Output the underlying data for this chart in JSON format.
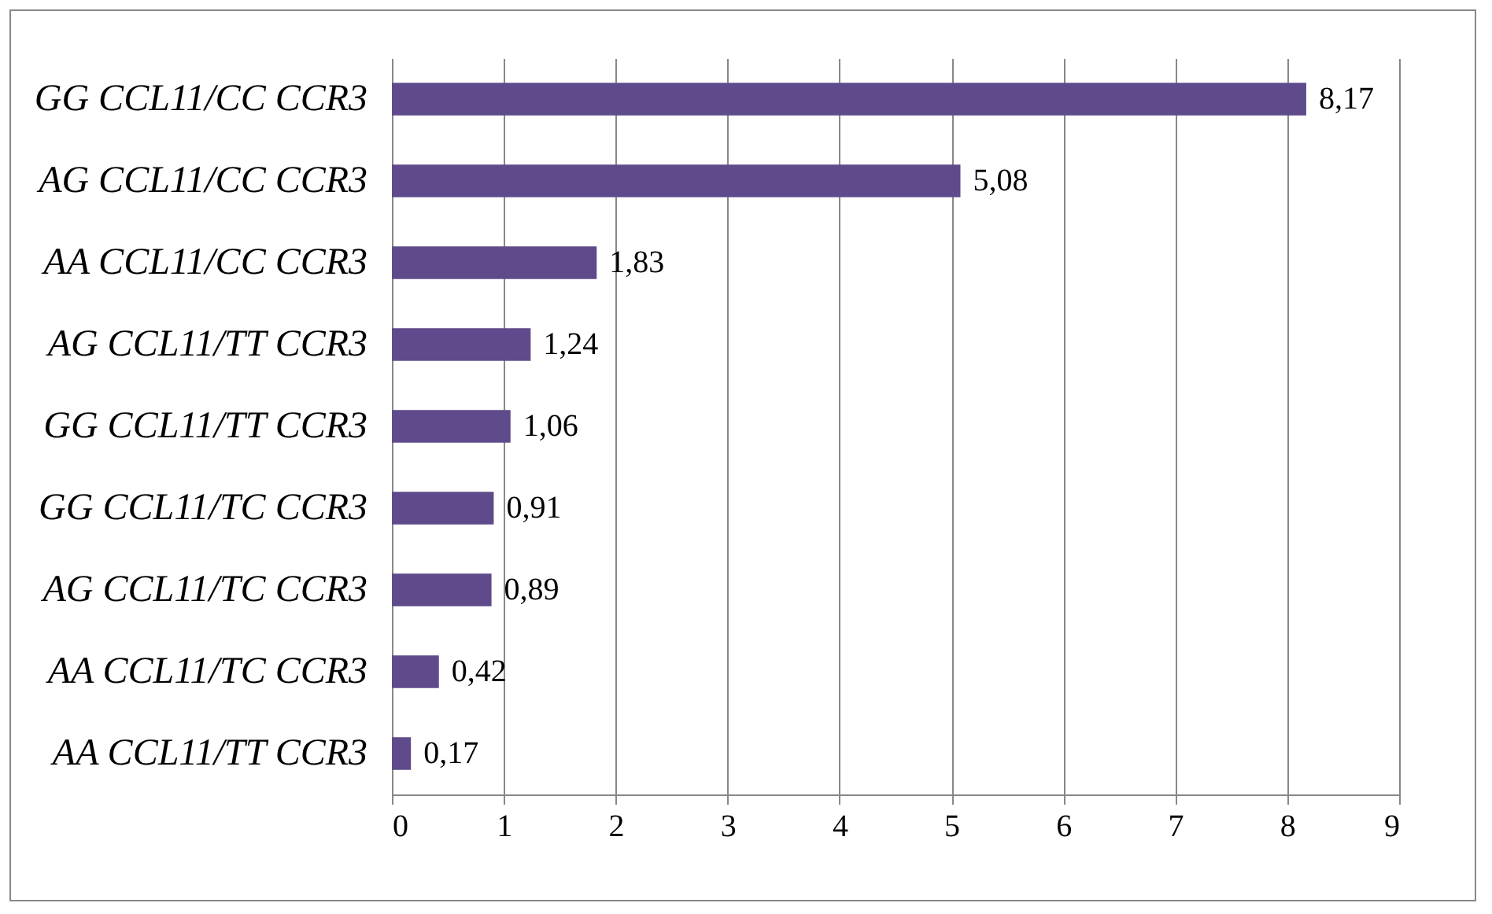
{
  "chart_data": {
    "type": "bar",
    "orientation": "horizontal",
    "categories": [
      "GG CCL11/CC CCR3",
      "AG CCL11/CC CCR3",
      "AA CCL11/CC CCR3",
      "AG CCL11/TT CCR3",
      "GG CCL11/TT CCR3",
      "GG CCL11/TC CCR3",
      "AG CCL11/TC CCR3",
      "AA CCL11/TC CCR3",
      "AA CCL11/TT CCR3"
    ],
    "values": [
      8.17,
      5.08,
      1.83,
      1.24,
      1.06,
      0.91,
      0.89,
      0.42,
      0.17
    ],
    "value_labels": [
      "8,17",
      "5,08",
      "1,83",
      "1,24",
      "1,06",
      "0,91",
      "0,89",
      "0,42",
      "0,17"
    ],
    "color": "#5f4b8b",
    "xlim": [
      0,
      9
    ],
    "xticks": [
      0,
      1,
      2,
      3,
      4,
      5,
      6,
      7,
      8,
      9
    ],
    "grid": "x"
  }
}
